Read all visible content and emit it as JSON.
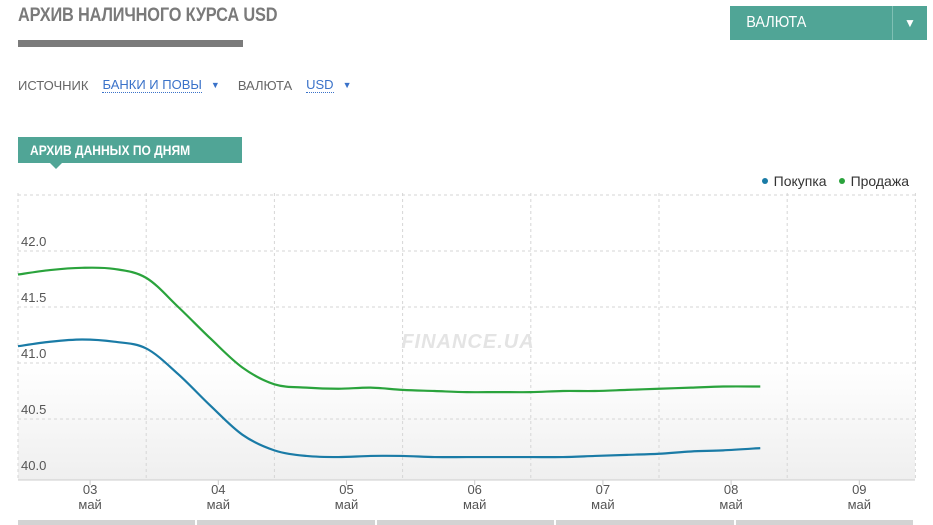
{
  "header": {
    "title": "АРХИВ НАЛИЧНОГО КУРСА USD",
    "currency_button": "ВАЛЮТА",
    "currency_button_icon": "triangle-down-icon"
  },
  "filters": {
    "source_label": "ИСТОЧНИК",
    "source_value": "БАНКИ И ПОВЫ",
    "currency_label": "ВАЛЮТА",
    "currency_value": "USD"
  },
  "section": {
    "tab_label": "АРХИВ ДАННЫХ ПО ДНЯМ"
  },
  "watermark": "FINANCE.UA",
  "colors": {
    "accent": "#50a596",
    "buy": "#1a7ba6",
    "sell": "#2aa33c"
  },
  "chart_data": {
    "type": "line",
    "x_ticks": [
      {
        "day": "03",
        "month": "май"
      },
      {
        "day": "04",
        "month": "май"
      },
      {
        "day": "05",
        "month": "май"
      },
      {
        "day": "06",
        "month": "май"
      },
      {
        "day": "07",
        "month": "май"
      },
      {
        "day": "08",
        "month": "май"
      },
      {
        "day": "09",
        "month": "май"
      }
    ],
    "y_ticks": [
      "42.0",
      "41.5",
      "41.0",
      "40.5",
      "40.0"
    ],
    "ylim": [
      39.95,
      42.25
    ],
    "legend_position": "top-right",
    "grid": true,
    "series": [
      {
        "name": "Покупка",
        "color": "#1a7ba6",
        "points": [
          [
            0.0,
            41.15
          ],
          [
            0.25,
            41.19
          ],
          [
            0.5,
            41.21
          ],
          [
            0.75,
            41.19
          ],
          [
            1.0,
            41.13
          ],
          [
            1.25,
            40.9
          ],
          [
            1.5,
            40.62
          ],
          [
            1.75,
            40.36
          ],
          [
            2.0,
            40.22
          ],
          [
            2.25,
            40.17
          ],
          [
            2.5,
            40.16
          ],
          [
            2.75,
            40.17
          ],
          [
            3.0,
            40.17
          ],
          [
            3.25,
            40.16
          ],
          [
            3.5,
            40.16
          ],
          [
            3.75,
            40.16
          ],
          [
            4.0,
            40.16
          ],
          [
            4.25,
            40.16
          ],
          [
            4.5,
            40.17
          ],
          [
            4.75,
            40.18
          ],
          [
            5.0,
            40.19
          ],
          [
            5.25,
            40.21
          ],
          [
            5.5,
            40.22
          ],
          [
            5.79,
            40.24
          ]
        ]
      },
      {
        "name": "Продажа",
        "color": "#2aa33c",
        "points": [
          [
            0.0,
            41.79
          ],
          [
            0.25,
            41.83
          ],
          [
            0.5,
            41.85
          ],
          [
            0.75,
            41.84
          ],
          [
            1.0,
            41.76
          ],
          [
            1.25,
            41.5
          ],
          [
            1.5,
            41.22
          ],
          [
            1.75,
            40.96
          ],
          [
            2.0,
            40.81
          ],
          [
            2.25,
            40.78
          ],
          [
            2.5,
            40.77
          ],
          [
            2.75,
            40.78
          ],
          [
            3.0,
            40.76
          ],
          [
            3.25,
            40.75
          ],
          [
            3.5,
            40.74
          ],
          [
            3.75,
            40.74
          ],
          [
            4.0,
            40.74
          ],
          [
            4.25,
            40.75
          ],
          [
            4.5,
            40.75
          ],
          [
            4.75,
            40.76
          ],
          [
            5.0,
            40.77
          ],
          [
            5.25,
            40.78
          ],
          [
            5.5,
            40.79
          ],
          [
            5.79,
            40.79
          ]
        ]
      }
    ]
  }
}
